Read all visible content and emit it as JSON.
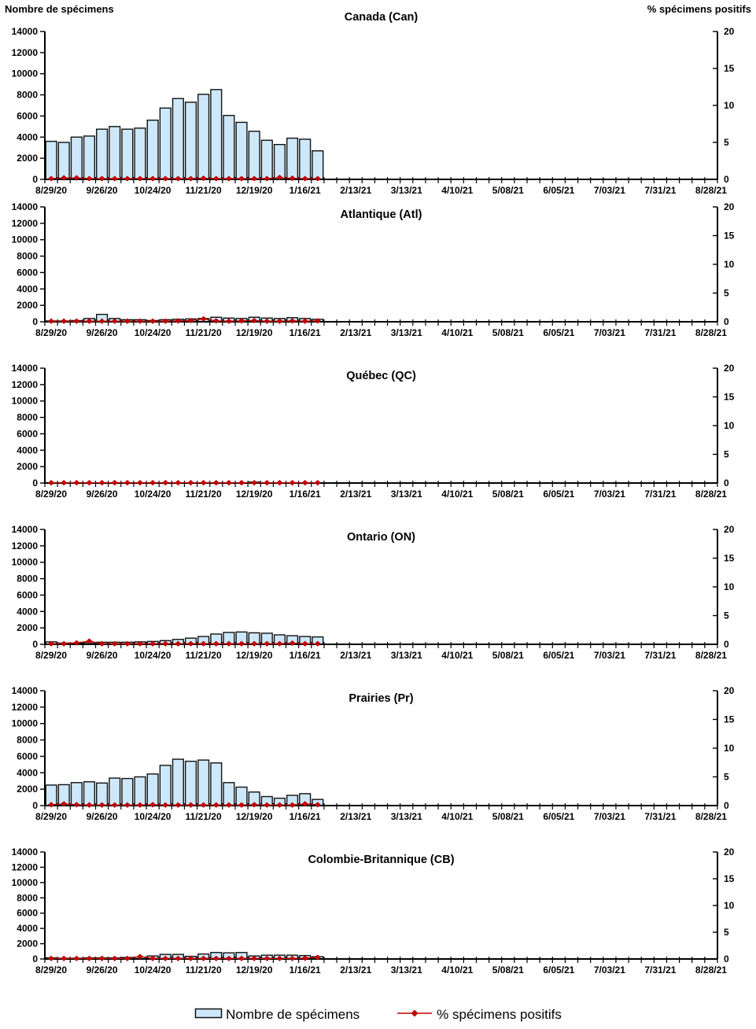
{
  "page": {
    "left_axis_header": "Nombre de spécimens",
    "right_axis_header": "% spécimens positifs"
  },
  "legend": {
    "bars": "Nombre de spécimens",
    "line": "% spécimens positifs"
  },
  "colors": {
    "bar_fill": "#cde8fa",
    "bar_stroke": "#111111",
    "line": "#c00000",
    "axis": "#000000",
    "text": "#000000"
  },
  "axes": {
    "y_left": {
      "min": 0,
      "max": 14000,
      "step": 2000,
      "tick_labels": [
        "0",
        "2000",
        "4000",
        "6000",
        "8000",
        "10000",
        "12000",
        "14000"
      ]
    },
    "y_right": {
      "min": 0,
      "max": 20,
      "step": 5,
      "tick_labels": [
        "0",
        "5",
        "10",
        "15",
        "20"
      ]
    },
    "x": {
      "n_weeks": 53,
      "label_every_n_weeks": 4,
      "tick_labels": [
        "8/29/20",
        "9/26/20",
        "10/24/20",
        "11/21/20",
        "12/19/20",
        "1/16/21",
        "2/13/21",
        "3/13/21",
        "4/10/21",
        "5/08/21",
        "6/05/21",
        "7/03/21",
        "7/31/21",
        "8/28/21"
      ]
    }
  },
  "chart_data": [
    {
      "type": "bar",
      "title": "Canada (Can)",
      "bar_series": {
        "name": "Nombre de spécimens",
        "values": [
          3600,
          3500,
          4000,
          4100,
          4750,
          5000,
          4750,
          4850,
          5600,
          6750,
          7650,
          7300,
          8050,
          8500,
          6050,
          5400,
          4550,
          3700,
          3300,
          3900,
          3800,
          2700
        ]
      },
      "line_series": {
        "name": "% spécimens positifs",
        "values": [
          0.1,
          0.2,
          0.2,
          0.1,
          0.1,
          0.1,
          0.1,
          0.1,
          0.1,
          0.1,
          0.1,
          0.1,
          0.15,
          0.1,
          0.1,
          0.1,
          0.1,
          0.1,
          0.25,
          0.15,
          0.1,
          0.1
        ]
      }
    },
    {
      "type": "bar",
      "title": "Atlantique (Atl)",
      "bar_series": {
        "name": "Nombre de spécimens",
        "values": [
          100,
          100,
          150,
          400,
          900,
          400,
          250,
          250,
          150,
          250,
          300,
          350,
          400,
          550,
          450,
          400,
          550,
          450,
          400,
          500,
          400,
          300
        ]
      },
      "line_series": {
        "name": "% spécimens positifs",
        "values": [
          0.1,
          0.1,
          0.1,
          0.1,
          0.1,
          0.1,
          0.1,
          0.1,
          0.1,
          0.1,
          0.15,
          0.2,
          0.5,
          0.15,
          0.1,
          0.15,
          0.2,
          0.1,
          0.1,
          0.15,
          0.1,
          0.15
        ]
      }
    },
    {
      "type": "bar",
      "title": "Québec (QC)",
      "bar_series": {
        "name": "Nombre de spécimens",
        "values": [
          0,
          0,
          0,
          0,
          0,
          0,
          0,
          0,
          0,
          0,
          0,
          0,
          0,
          0,
          0,
          0,
          120,
          0,
          0,
          0,
          0,
          0
        ]
      },
      "line_series": {
        "name": "% spécimens positifs",
        "values": [
          0.05,
          0.05,
          0.05,
          0.05,
          0.05,
          0.05,
          0.05,
          0.05,
          0.05,
          0.05,
          0.05,
          0.05,
          0.05,
          0.05,
          0.05,
          0.05,
          0.05,
          0.05,
          0.05,
          0.05,
          0.05,
          0.05
        ]
      }
    },
    {
      "type": "bar",
      "title": "Ontario (ON)",
      "bar_series": {
        "name": "Nombre de spécimens",
        "values": [
          300,
          150,
          150,
          200,
          250,
          250,
          250,
          300,
          350,
          450,
          600,
          750,
          950,
          1250,
          1450,
          1500,
          1400,
          1350,
          1150,
          1050,
          950,
          900
        ]
      },
      "line_series": {
        "name": "% spécimens positifs",
        "values": [
          0.1,
          0.1,
          0.25,
          0.55,
          0.1,
          0.1,
          0.1,
          0.1,
          0.1,
          0.1,
          0.1,
          0.1,
          0.1,
          0.1,
          0.1,
          0.1,
          0.1,
          0.1,
          0.1,
          0.2,
          0.1,
          0.1
        ]
      }
    },
    {
      "type": "bar",
      "title": "Prairies (Pr)",
      "bar_series": {
        "name": "Nombre de spécimens",
        "values": [
          2500,
          2550,
          2800,
          2900,
          2750,
          3350,
          3300,
          3500,
          3850,
          4900,
          5650,
          5400,
          5550,
          5200,
          2800,
          2250,
          1650,
          1100,
          900,
          1250,
          1450,
          750
        ]
      },
      "line_series": {
        "name": "% spécimens positifs",
        "values": [
          0.15,
          0.3,
          0.15,
          0.1,
          0.1,
          0.1,
          0.1,
          0.1,
          0.15,
          0.1,
          0.1,
          0.1,
          0.1,
          0.1,
          0.1,
          0.1,
          0.15,
          0.1,
          0.1,
          0.1,
          0.3,
          0.15
        ]
      }
    },
    {
      "type": "bar",
      "title": "Colombie-Britannique (CB)",
      "bar_series": {
        "name": "Nombre de spécimens",
        "values": [
          150,
          100,
          100,
          150,
          150,
          150,
          200,
          250,
          400,
          600,
          600,
          350,
          650,
          850,
          800,
          850,
          400,
          500,
          500,
          500,
          450,
          300
        ]
      },
      "line_series": {
        "name": "% spécimens positifs",
        "values": [
          0.1,
          0.1,
          0.1,
          0.1,
          0.1,
          0.1,
          0.1,
          0.45,
          0.1,
          0.1,
          0.1,
          0.1,
          0.1,
          0.1,
          0.1,
          0.1,
          0.1,
          0.1,
          0.1,
          0.1,
          0.15,
          0.3
        ]
      }
    }
  ]
}
